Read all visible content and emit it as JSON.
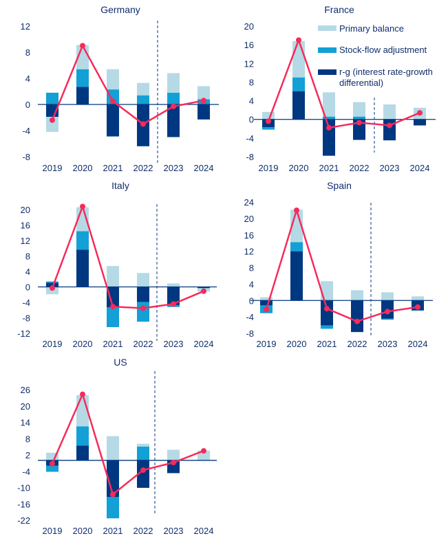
{
  "chart_data": [
    {
      "type": "bar",
      "stacked": true,
      "title": "Germany",
      "categories": [
        "2019",
        "2020",
        "2021",
        "2022",
        "2023",
        "2024"
      ],
      "yticks": [
        12,
        8,
        4,
        0,
        -4,
        -8
      ],
      "ylim": [
        -8,
        12
      ],
      "forecast_divider_after": "2022",
      "series": [
        {
          "name": "r-g (interest rate-growth differential)",
          "values": [
            -1.9,
            2.7,
            -4.9,
            -6.4,
            -5.0,
            -2.3
          ]
        },
        {
          "name": "Stock-flow adjustment",
          "values": [
            1.8,
            2.7,
            2.3,
            1.4,
            1.8,
            0.8
          ]
        },
        {
          "name": "Primary balance",
          "values": [
            -2.3,
            3.7,
            3.1,
            1.9,
            3.0,
            2.0
          ]
        }
      ],
      "line": [
        -2.4,
        9.0,
        0.5,
        -3.0,
        -0.3,
        0.6
      ]
    },
    {
      "type": "bar",
      "stacked": true,
      "title": "France",
      "categories": [
        "2019",
        "2020",
        "2021",
        "2022",
        "2023",
        "2024"
      ],
      "yticks": [
        20,
        16,
        12,
        8,
        4,
        0,
        -4,
        -8
      ],
      "ylim": [
        -8,
        20
      ],
      "forecast_divider_after": "2022",
      "series": [
        {
          "name": "r-g (interest rate-growth differential)",
          "values": [
            -1.7,
            6.0,
            -7.8,
            -4.4,
            -4.5,
            -1.3
          ]
        },
        {
          "name": "Stock-flow adjustment",
          "values": [
            -0.5,
            3.0,
            0.6,
            0.6,
            0,
            0
          ]
        },
        {
          "name": "Primary balance",
          "values": [
            1.6,
            7.8,
            5.2,
            3.1,
            3.2,
            2.5
          ]
        }
      ],
      "line": [
        -0.4,
        17.0,
        -1.8,
        -0.7,
        -1.3,
        1.4
      ]
    },
    {
      "type": "bar",
      "stacked": true,
      "title": "Italy",
      "categories": [
        "2019",
        "2020",
        "2021",
        "2022",
        "2023",
        "2024"
      ],
      "yticks": [
        20,
        16,
        12,
        8,
        4,
        0,
        -4,
        -8,
        -12
      ],
      "ylim": [
        -12,
        20
      ],
      "forecast_divider_after": "2022",
      "series": [
        {
          "name": "r-g (interest rate-growth differential)",
          "values": [
            1.1,
            9.6,
            -5.3,
            -3.9,
            -4.7,
            -0.3
          ]
        },
        {
          "name": "Stock-flow adjustment",
          "values": [
            0.3,
            4.8,
            -5.1,
            -5.1,
            -0.5,
            -0.1
          ]
        },
        {
          "name": "Primary balance",
          "values": [
            -1.9,
            6.2,
            5.4,
            3.6,
            0.9,
            -0.8
          ]
        }
      ],
      "line": [
        -0.3,
        20.8,
        -5.1,
        -5.5,
        -4.4,
        -1.1
      ]
    },
    {
      "type": "bar",
      "stacked": true,
      "title": "Spain",
      "categories": [
        "2019",
        "2020",
        "2021",
        "2022",
        "2023",
        "2024"
      ],
      "yticks": [
        24,
        20,
        16,
        12,
        8,
        4,
        0,
        -4,
        -8
      ],
      "ylim": [
        -8,
        24
      ],
      "forecast_divider_after": "2022",
      "series": [
        {
          "name": "r-g (interest rate-growth differential)",
          "values": [
            -1.2,
            12.0,
            -6.1,
            -7.7,
            -4.4,
            -2.4
          ]
        },
        {
          "name": "Stock-flow adjustment",
          "values": [
            -1.9,
            2.2,
            -0.8,
            0.1,
            -0.3,
            -0.1
          ]
        },
        {
          "name": "Primary balance",
          "values": [
            0.8,
            7.9,
            4.7,
            2.4,
            2.0,
            1.0
          ]
        }
      ],
      "line": [
        -2.2,
        22.0,
        -2.0,
        -5.1,
        -2.7,
        -1.6
      ]
    },
    {
      "type": "bar",
      "stacked": true,
      "title": "US",
      "categories": [
        "2019",
        "2020",
        "2021",
        "2022",
        "2023",
        "2024"
      ],
      "yticks": [
        26,
        20,
        14,
        8,
        2,
        -4,
        -10,
        -16,
        -22
      ],
      "ylim": [
        -22,
        26
      ],
      "forecast_divider_after": "2022",
      "series": [
        {
          "name": "r-g (interest rate-growth differential)",
          "values": [
            -2.0,
            5.4,
            -13.5,
            -10.1,
            -4.7,
            0
          ]
        },
        {
          "name": "Stock-flow adjustment",
          "values": [
            -2.2,
            7.1,
            -7.8,
            5.1,
            0,
            0
          ]
        },
        {
          "name": "Primary balance",
          "values": [
            2.8,
            11.5,
            8.9,
            1.0,
            3.9,
            3.6
          ]
        }
      ],
      "line": [
        -1.2,
        24.3,
        -12.5,
        -3.6,
        -0.8,
        3.5
      ]
    }
  ],
  "legend": {
    "placement": "top-right",
    "items": [
      {
        "label": "Primary balance",
        "color": "#b5dae5"
      },
      {
        "label": "Stock-flow adjustment",
        "color": "#12a0d6"
      },
      {
        "label": "r-g (interest rate-growth",
        "label2": "differential)",
        "color": "#003781"
      }
    ]
  },
  "colors": {
    "rg": "#003781",
    "sfa": "#12a0d6",
    "pb": "#b5dae5",
    "line": "#f72a5a",
    "text": "#0f2d6b"
  }
}
